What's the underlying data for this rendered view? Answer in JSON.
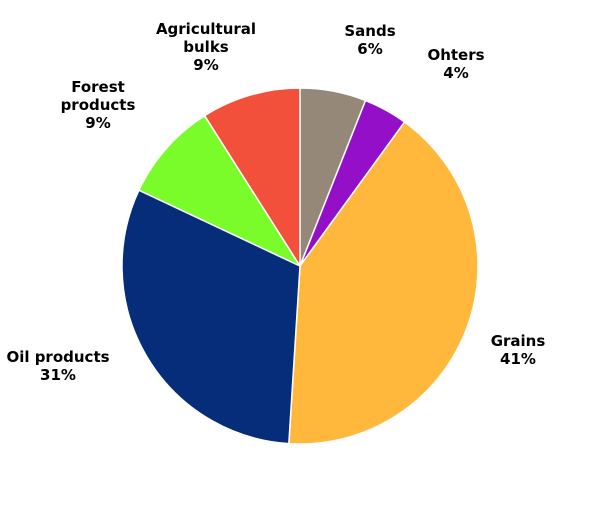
{
  "chart_data": {
    "type": "pie",
    "title": "",
    "start_angle_deg": 0,
    "direction": "clockwise",
    "slices": [
      {
        "label": "Sands",
        "label_lines": [
          "Sands",
          "6%"
        ],
        "value": 6,
        "color": "#958878"
      },
      {
        "label": "Ohters",
        "label_lines": [
          "Ohters",
          "4%"
        ],
        "value": 4,
        "color": "#9410c8"
      },
      {
        "label": "Grains",
        "label_lines": [
          "Grains",
          "41%"
        ],
        "value": 41,
        "color": "#ffb83c"
      },
      {
        "label": "Oil products",
        "label_lines": [
          "Oil products",
          "31%"
        ],
        "value": 31,
        "color": "#052d7a"
      },
      {
        "label": "Forest products",
        "label_lines": [
          "Forest",
          "products",
          "9%"
        ],
        "value": 9,
        "color": "#7afb2a"
      },
      {
        "label": "Agricultural bulks",
        "label_lines": [
          "Agricultural",
          "bulks",
          "9%"
        ],
        "value": 9,
        "color": "#f2503a"
      }
    ]
  }
}
